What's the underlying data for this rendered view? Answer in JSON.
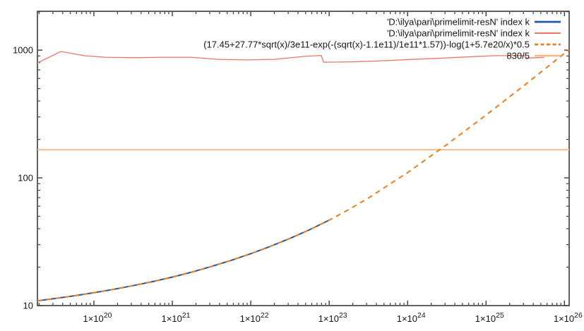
{
  "window": {
    "background": "#ffffff"
  },
  "chart_data": {
    "type": "line",
    "title": "",
    "xlabel": "",
    "ylabel": "",
    "x_scale": "log",
    "y_scale": "log",
    "xlim": [
      1.905e+19,
      1.148e+26
    ],
    "ylim": [
      10,
      2014
    ],
    "grid": false,
    "legend_position": "top-right-inside",
    "frame_color": "#3a3a3a",
    "text_color": "#141414",
    "x_ticks": [
      {
        "value": 1e+20,
        "mantissa": "1×10",
        "exponent": "20"
      },
      {
        "value": 1e+21,
        "mantissa": "1×10",
        "exponent": "21"
      },
      {
        "value": 1e+22,
        "mantissa": "1×10",
        "exponent": "22"
      },
      {
        "value": 1e+23,
        "mantissa": "1×10",
        "exponent": "23"
      },
      {
        "value": 1e+24,
        "mantissa": "1×10",
        "exponent": "24"
      },
      {
        "value": 1e+25,
        "mantissa": "1×10",
        "exponent": "25"
      },
      {
        "value": 1e+26,
        "mantissa": "1×10",
        "exponent": "26"
      }
    ],
    "y_ticks": [
      {
        "value": 10,
        "label": "10"
      },
      {
        "value": 100,
        "label": "100"
      },
      {
        "value": 1000,
        "label": "1000"
      }
    ],
    "series": [
      {
        "name": "'D:\\ilya\\pari\\primelimit-resN' index k",
        "color": "#2059a8",
        "style": "solid",
        "width": 2,
        "points": [
          [
            1.905e+19,
            10.89
          ],
          [
            3.162e+19,
            11.35
          ],
          [
            5.623e+19,
            11.94
          ],
          [
            1e+20,
            12.62
          ],
          [
            1.778e+20,
            13.4
          ],
          [
            3.162e+20,
            14.33
          ],
          [
            5.623e+20,
            15.42
          ],
          [
            1e+21,
            16.73
          ],
          [
            1.778e+21,
            18.31
          ],
          [
            3.162e+21,
            20.25
          ],
          [
            5.623e+21,
            22.61
          ],
          [
            1e+22,
            25.51
          ],
          [
            1.778e+22,
            29.08
          ],
          [
            3.162e+22,
            33.56
          ],
          [
            5.623e+22,
            39.26
          ],
          [
            1e+23,
            46.68
          ]
        ]
      },
      {
        "name": "'D:\\ilya\\pari\\primelimit-resN' index k",
        "color": "#ee7468",
        "style": "solid",
        "width": 1.3,
        "points": [
          [
            1.905e+19,
            795
          ],
          [
            3.8e+19,
            975
          ],
          [
            7.6e+19,
            904
          ],
          [
            1.4e+20,
            880
          ],
          [
            3.2e+20,
            872
          ],
          [
            7.4e+20,
            880
          ],
          [
            1.7e+21,
            880
          ],
          [
            3.9e+21,
            847
          ],
          [
            9e+21,
            838
          ],
          [
            2e+22,
            847
          ],
          [
            4.8e+22,
            893
          ],
          [
            7.9e+22,
            908
          ],
          [
            8.5e+22,
            805
          ],
          [
            2e+23,
            810
          ],
          [
            4.3e+23,
            822
          ],
          [
            1.07e+24,
            845
          ],
          [
            2.4e+24,
            862
          ],
          [
            5.6e+24,
            884
          ],
          [
            1.3e+25,
            905
          ],
          [
            3.05e+25,
            908
          ],
          [
            3.35e+25,
            866
          ],
          [
            5.5e+25,
            876
          ]
        ]
      },
      {
        "name": "(17.45+27.77*sqrt(x)/3e11-exp(-(sqrt(x)-1.1e11)/1e11*1.57))-log(1+5.7e20/x)*0.5",
        "color": "#ef7d1c",
        "style": "dashed",
        "width": 2,
        "points": [
          [
            1.905e+19,
            10.89
          ],
          [
            3.162e+19,
            11.35
          ],
          [
            5.623e+19,
            11.94
          ],
          [
            1e+20,
            12.62
          ],
          [
            1.778e+20,
            13.4
          ],
          [
            3.162e+20,
            14.33
          ],
          [
            5.623e+20,
            15.42
          ],
          [
            1e+21,
            16.73
          ],
          [
            1.778e+21,
            18.31
          ],
          [
            3.162e+21,
            20.25
          ],
          [
            5.623e+21,
            22.61
          ],
          [
            1e+22,
            25.51
          ],
          [
            1.778e+22,
            29.08
          ],
          [
            3.162e+22,
            33.56
          ],
          [
            5.623e+22,
            39.26
          ],
          [
            1e+23,
            46.68
          ],
          [
            1.778e+23,
            56.47
          ],
          [
            3.162e+23,
            69.5
          ],
          [
            1e+24,
            110.0
          ],
          [
            3.162e+24,
            182.0
          ],
          [
            1e+25,
            310.2
          ],
          [
            3.162e+25,
            537.9
          ],
          [
            1e+26,
            943.1
          ],
          [
            1.148e+26,
            1009
          ]
        ]
      },
      {
        "name": "830/5",
        "color": "#f4b97f",
        "style": "solid",
        "width": 1.8,
        "points": [
          [
            1.905e+19,
            166
          ],
          [
            1.148e+26,
            166
          ]
        ]
      }
    ]
  }
}
